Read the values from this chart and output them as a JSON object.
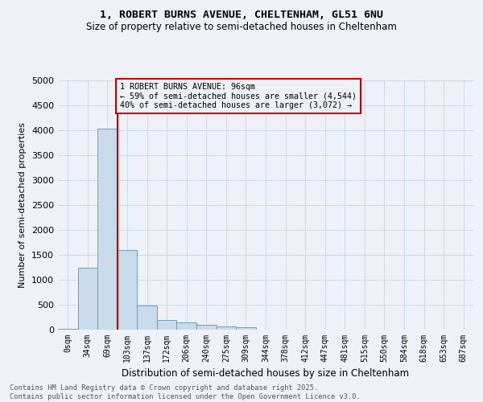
{
  "title_line1": "1, ROBERT BURNS AVENUE, CHELTENHAM, GL51 6NU",
  "title_line2": "Size of property relative to semi-detached houses in Cheltenham",
  "xlabel": "Distribution of semi-detached houses by size in Cheltenham",
  "ylabel": "Number of semi-detached properties",
  "annotation_title": "1 ROBERT BURNS AVENUE: 96sqm",
  "annotation_line1": "← 59% of semi-detached houses are smaller (4,544)",
  "annotation_line2": "40% of semi-detached houses are larger (3,072) →",
  "footer_line1": "Contains HM Land Registry data © Crown copyright and database right 2025.",
  "footer_line2": "Contains public sector information licensed under the Open Government Licence v3.0.",
  "bar_categories": [
    "0sqm",
    "34sqm",
    "69sqm",
    "103sqm",
    "137sqm",
    "172sqm",
    "206sqm",
    "240sqm",
    "275sqm",
    "309sqm",
    "344sqm",
    "378sqm",
    "412sqm",
    "447sqm",
    "481sqm",
    "515sqm",
    "550sqm",
    "584sqm",
    "618sqm",
    "653sqm",
    "687sqm"
  ],
  "bar_values": [
    20,
    1240,
    4040,
    1600,
    490,
    200,
    140,
    90,
    70,
    50,
    0,
    0,
    0,
    0,
    0,
    0,
    0,
    0,
    0,
    0,
    0
  ],
  "bar_color": "#c9daea",
  "bar_edge_color": "#6a9ec0",
  "vline_color": "#cc0000",
  "vline_x": 2.5,
  "annotation_box_color": "#cc0000",
  "grid_color": "#ccd8e8",
  "ylim": [
    0,
    5000
  ],
  "yticks": [
    0,
    500,
    1000,
    1500,
    2000,
    2500,
    3000,
    3500,
    4000,
    4500,
    5000
  ],
  "background_color": "#eef2f8"
}
